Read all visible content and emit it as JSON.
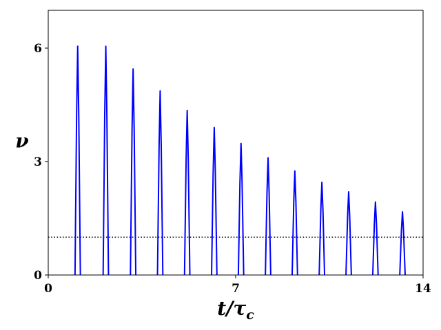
{
  "chart_data": {
    "type": "line",
    "ylabel": "ν",
    "xlabel": "t/τ",
    "xlabel_subscript": "c",
    "xlim": [
      0,
      14
    ],
    "ylim": [
      0,
      7
    ],
    "xticks": [
      0,
      7,
      14
    ],
    "yticks": [
      0,
      3,
      6
    ],
    "hline": {
      "y": 1,
      "color": "#000000",
      "style": "dotted"
    },
    "x": [
      1.0,
      1.06,
      1.1,
      1.14,
      1.2,
      1.6,
      2.05,
      2.11,
      2.15,
      2.19,
      2.25,
      2.6,
      3.07,
      3.13,
      3.17,
      3.21,
      3.27,
      3.6,
      4.08,
      4.14,
      4.18,
      4.22,
      4.28,
      4.6,
      5.09,
      5.15,
      5.19,
      5.23,
      5.29,
      5.6,
      6.1,
      6.16,
      6.2,
      6.24,
      6.3,
      6.6,
      7.1,
      7.16,
      7.2,
      7.24,
      7.3,
      7.6,
      8.11,
      8.17,
      8.21,
      8.25,
      8.31,
      8.6,
      9.11,
      9.17,
      9.21,
      9.25,
      9.31,
      9.6,
      10.12,
      10.18,
      10.22,
      10.26,
      10.32,
      10.6,
      11.12,
      11.18,
      11.22,
      11.26,
      11.32,
      11.6,
      12.12,
      12.18,
      12.22,
      12.26,
      12.32,
      12.6,
      13.13,
      13.19,
      13.23,
      13.27,
      13.33
    ],
    "series": [
      {
        "color": "#0000ff",
        "values": [
          0,
          4.24,
          6.05,
          4.24,
          0,
          null,
          0,
          4.24,
          6.05,
          4.24,
          0,
          null,
          0,
          3.82,
          5.45,
          3.82,
          0,
          null,
          0,
          3.41,
          4.87,
          3.41,
          0,
          null,
          0,
          3.05,
          4.35,
          3.05,
          0,
          null,
          0,
          2.73,
          3.9,
          2.73,
          0,
          null,
          0,
          2.44,
          3.48,
          2.44,
          0,
          null,
          0,
          2.17,
          3.1,
          2.17,
          0,
          null,
          0,
          1.93,
          2.75,
          1.93,
          0,
          null,
          0,
          1.72,
          2.45,
          1.72,
          0,
          null,
          0,
          1.54,
          2.2,
          1.54,
          0,
          null,
          0,
          1.35,
          1.93,
          1.35,
          0,
          null,
          0,
          1.17,
          1.67,
          1.17,
          0
        ]
      }
    ]
  }
}
